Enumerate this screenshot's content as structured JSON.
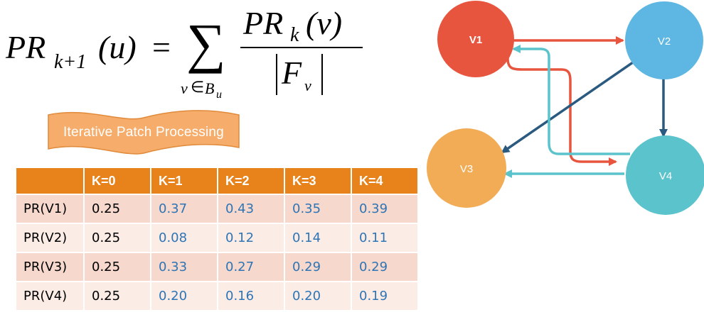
{
  "formula": {
    "lhs_main": "PR",
    "lhs_sub": "k+1",
    "lhs_arg": "(u)",
    "equals": "=",
    "sum_symbol": "∑",
    "sum_index_var": "v",
    "sum_index_in": "∈",
    "sum_index_set": "B",
    "sum_index_set_sub": "u",
    "numerator_main": "PR",
    "numerator_sub": "k",
    "numerator_arg": "(v)",
    "denominator_main": "F",
    "denominator_sub": "v"
  },
  "banner": {
    "label": "Iterative Patch Processing"
  },
  "table": {
    "headers": [
      "",
      "K=0",
      "K=1",
      "K=2",
      "K=3",
      "K=4"
    ],
    "rows": [
      {
        "label": "PR(V1)",
        "values": [
          "0.25",
          "0.37",
          "0.43",
          "0.35",
          "0.39"
        ]
      },
      {
        "label": "PR(V2)",
        "values": [
          "0.25",
          "0.08",
          "0.12",
          "0.14",
          "0.11"
        ]
      },
      {
        "label": "PR(V3)",
        "values": [
          "0.25",
          "0.33",
          "0.27",
          "0.29",
          "0.29"
        ]
      },
      {
        "label": "PR(V4)",
        "values": [
          "0.25",
          "0.20",
          "0.16",
          "0.20",
          "0.19"
        ]
      }
    ]
  },
  "graph": {
    "nodes": [
      {
        "id": "V1",
        "label": "V1",
        "color": "#e8553e"
      },
      {
        "id": "V2",
        "label": "V2",
        "color": "#5db7e2"
      },
      {
        "id": "V3",
        "label": "V3",
        "color": "#f2ac56"
      },
      {
        "id": "V4",
        "label": "V4",
        "color": "#5bc3cc"
      }
    ],
    "edges": [
      {
        "from": "V1",
        "to": "V2",
        "color": "#e8553e"
      },
      {
        "from": "V1",
        "to": "V4",
        "color": "#e8553e"
      },
      {
        "from": "V2",
        "to": "V3",
        "color": "#2a5a80"
      },
      {
        "from": "V2",
        "to": "V4",
        "color": "#2a5a80"
      },
      {
        "from": "V4",
        "to": "V1",
        "color": "#5bc3cc"
      },
      {
        "from": "V4",
        "to": "V3",
        "color": "#5bc3cc"
      }
    ],
    "banner_fill": "#f6ac6a",
    "banner_stroke": "#e08a3a"
  }
}
